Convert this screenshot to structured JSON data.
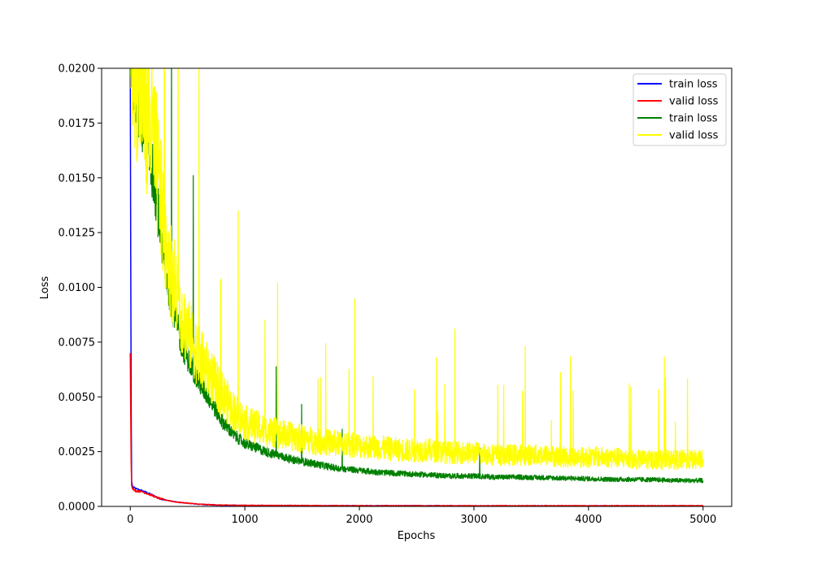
{
  "chart_data": {
    "type": "line",
    "title": "",
    "xlabel": "Epochs",
    "ylabel": "Loss",
    "xlim": [
      -250,
      5250
    ],
    "ylim": [
      0,
      0.02
    ],
    "xticks": [
      0,
      1000,
      2000,
      3000,
      4000,
      5000
    ],
    "xtick_labels": [
      "0",
      "1000",
      "2000",
      "3000",
      "4000",
      "5000"
    ],
    "yticks": [
      0.0,
      0.0025,
      0.005,
      0.0075,
      0.01,
      0.0125,
      0.015,
      0.0175,
      0.02
    ],
    "ytick_labels": [
      "0.0000",
      "0.0025",
      "0.0050",
      "0.0075",
      "0.0100",
      "0.0125",
      "0.0150",
      "0.0175",
      "0.0200"
    ],
    "grid": false,
    "legend": {
      "position": "top-right"
    },
    "series": [
      {
        "name": "train loss",
        "color": "#0000ff",
        "x": [
          0,
          5,
          10,
          20,
          50,
          100,
          150,
          200,
          250,
          300,
          400,
          500,
          600,
          700,
          800,
          1000,
          1500,
          2000,
          2500,
          3000,
          3500,
          4000,
          4500,
          5000
        ],
        "y": [
          0.02,
          0.0095,
          0.0012,
          0.0009,
          0.0008,
          0.00072,
          0.00062,
          0.0005,
          0.00038,
          0.0003,
          0.0002,
          0.00015,
          0.0001,
          7e-05,
          5e-05,
          4e-05,
          3e-05,
          3e-05,
          3e-05,
          2e-05,
          2e-05,
          2e-05,
          2e-05,
          2e-05
        ]
      },
      {
        "name": "valid loss",
        "color": "#ff0000",
        "x": [
          0,
          5,
          10,
          20,
          50,
          100,
          150,
          200,
          250,
          300,
          400,
          500,
          600,
          700,
          800,
          1000,
          1500,
          2000,
          2500,
          3000,
          3500,
          4000,
          4500,
          5000
        ],
        "y": [
          0.007,
          0.0035,
          0.001,
          0.0008,
          0.0007,
          0.00068,
          0.00058,
          0.00048,
          0.00036,
          0.0003,
          0.0002,
          0.00015,
          0.0001,
          8e-05,
          6e-05,
          5e-05,
          4e-05,
          3e-05,
          3e-05,
          3e-05,
          3e-05,
          3e-05,
          3e-05,
          3e-05
        ]
      },
      {
        "name": "train loss",
        "color": "#008000",
        "x": [
          0,
          50,
          100,
          150,
          200,
          250,
          300,
          350,
          400,
          450,
          500,
          600,
          700,
          800,
          900,
          1000,
          1200,
          1400,
          1600,
          1800,
          2000,
          2200,
          2400,
          2600,
          2800,
          3000,
          3200,
          3400,
          3600,
          3800,
          4000,
          4200,
          4400,
          4600,
          4800,
          5000
        ],
        "y": [
          0.0205,
          0.0185,
          0.0172,
          0.0158,
          0.0148,
          0.0128,
          0.0108,
          0.0093,
          0.0082,
          0.0072,
          0.0066,
          0.0055,
          0.0047,
          0.0038,
          0.0032,
          0.0028,
          0.0024,
          0.0021,
          0.0019,
          0.0017,
          0.0016,
          0.0015,
          0.00145,
          0.0014,
          0.00135,
          0.00135,
          0.0013,
          0.0013,
          0.00128,
          0.00125,
          0.00123,
          0.0012,
          0.0012,
          0.00118,
          0.00115,
          0.00115
        ]
      },
      {
        "name": "valid loss",
        "color": "#ffff00",
        "x": [
          0,
          50,
          100,
          150,
          200,
          250,
          300,
          350,
          400,
          450,
          500,
          600,
          700,
          800,
          900,
          1000,
          1200,
          1400,
          1600,
          1800,
          2000,
          2200,
          2400,
          2600,
          2800,
          3000,
          3200,
          3400,
          3600,
          3800,
          4000,
          4200,
          4400,
          4600,
          4800,
          5000
        ],
        "y": [
          0.021,
          0.0188,
          0.0178,
          0.0168,
          0.0158,
          0.0138,
          0.0118,
          0.0102,
          0.0092,
          0.0082,
          0.0075,
          0.0064,
          0.0056,
          0.0048,
          0.0041,
          0.0036,
          0.0032,
          0.003,
          0.0028,
          0.0027,
          0.0026,
          0.0025,
          0.0024,
          0.0024,
          0.0023,
          0.0023,
          0.0022,
          0.0022,
          0.0022,
          0.0021,
          0.0021,
          0.0021,
          0.002,
          0.002,
          0.002,
          0.002
        ]
      }
    ]
  }
}
